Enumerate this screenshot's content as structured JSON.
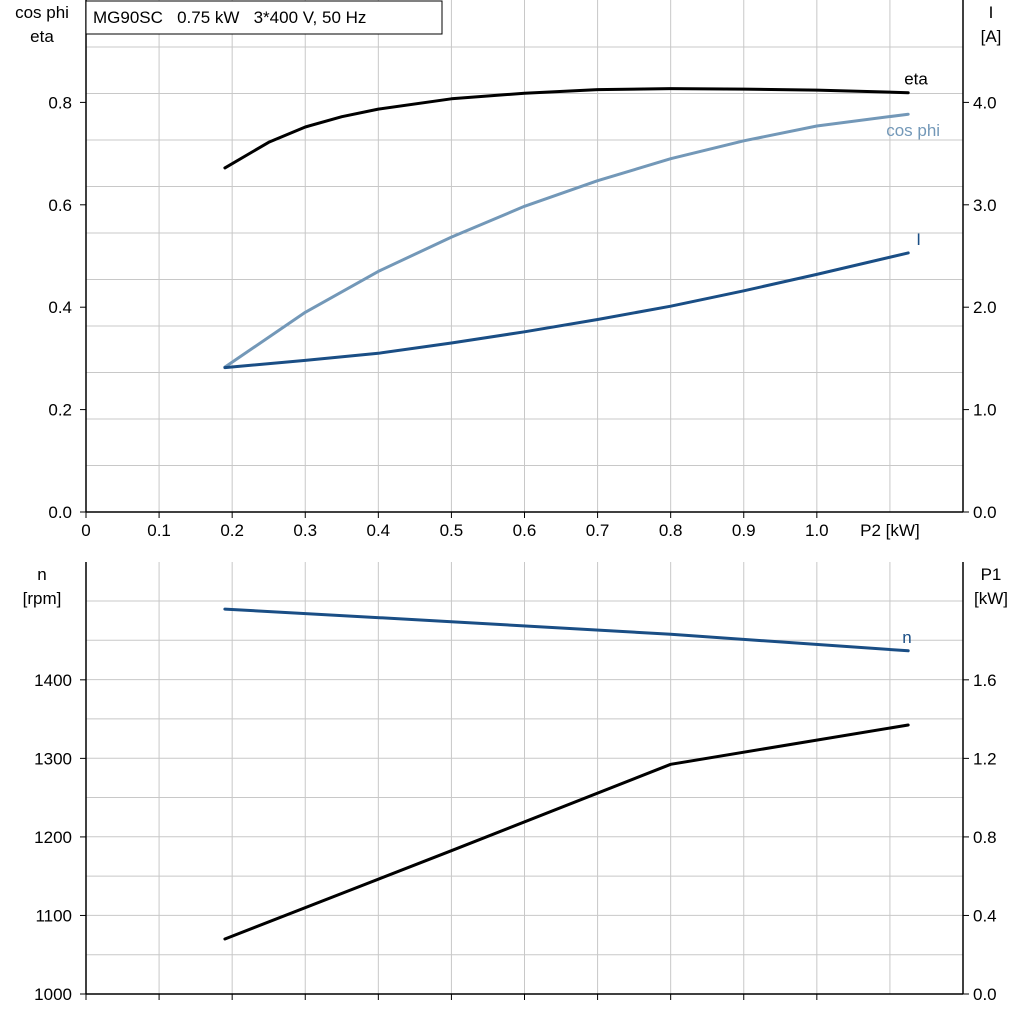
{
  "header": {
    "title": "MG90SC   0.75 kW   3*400 V, 50 Hz"
  },
  "chart_data": [
    {
      "type": "line",
      "x_axis": {
        "label": "P2 [kW]",
        "range": [
          0,
          1.2
        ],
        "ticks": [
          0,
          0.1,
          0.2,
          0.3,
          0.4,
          0.5,
          0.6,
          0.7,
          0.8,
          0.9,
          1.0
        ],
        "tick_labels": [
          "0",
          "0.1",
          "0.2",
          "0.3",
          "0.4",
          "0.5",
          "0.6",
          "0.7",
          "0.8",
          "0.9",
          "1.0"
        ]
      },
      "y_left": {
        "label": [
          "cos phi",
          "eta"
        ],
        "range": [
          0,
          1.0
        ],
        "ticks": [
          0,
          0.2,
          0.4,
          0.6,
          0.8
        ],
        "tick_labels": [
          "0.0",
          "0.2",
          "0.4",
          "0.6",
          "0.8"
        ]
      },
      "y_right": {
        "label": [
          "I",
          "[A]"
        ],
        "range": [
          0,
          5.0
        ],
        "ticks": [
          0,
          1,
          2,
          3,
          4
        ],
        "tick_labels": [
          "0.0",
          "1.0",
          "2.0",
          "3.0",
          "4.0"
        ]
      },
      "grid": true,
      "series": [
        {
          "name": "eta",
          "axis": "left",
          "color": "#000000",
          "x": [
            0.19,
            0.25,
            0.3,
            0.35,
            0.4,
            0.5,
            0.6,
            0.7,
            0.8,
            0.9,
            1.0,
            1.125
          ],
          "y": [
            0.672,
            0.722,
            0.752,
            0.772,
            0.787,
            0.807,
            0.818,
            0.825,
            0.827,
            0.826,
            0.824,
            0.819
          ]
        },
        {
          "name": "cos phi",
          "axis": "left",
          "color": "#7398b8",
          "x": [
            0.19,
            0.3,
            0.4,
            0.5,
            0.6,
            0.7,
            0.8,
            0.9,
            1.0,
            1.125
          ],
          "y": [
            0.283,
            0.39,
            0.47,
            0.537,
            0.597,
            0.647,
            0.69,
            0.725,
            0.754,
            0.777
          ]
        },
        {
          "name": "I",
          "axis": "right",
          "color": "#1a4e85",
          "x": [
            0.19,
            0.3,
            0.4,
            0.5,
            0.6,
            0.7,
            0.8,
            0.9,
            1.0,
            1.125
          ],
          "y": [
            1.41,
            1.48,
            1.55,
            1.65,
            1.76,
            1.88,
            2.01,
            2.16,
            2.32,
            2.53
          ]
        }
      ]
    },
    {
      "type": "line",
      "x_axis": {
        "range": [
          0,
          1.2
        ],
        "ticks": [
          0,
          0.1,
          0.2,
          0.3,
          0.4,
          0.5,
          0.6,
          0.7,
          0.8,
          0.9,
          1.0
        ]
      },
      "y_left": {
        "label": [
          "n",
          "[rpm]"
        ],
        "range": [
          1000,
          1550
        ],
        "ticks": [
          1000,
          1100,
          1200,
          1300,
          1400
        ],
        "tick_labels": [
          "1000",
          "1100",
          "1200",
          "1300",
          "1400"
        ]
      },
      "y_right": {
        "label": [
          "P1",
          "[kW]"
        ],
        "range": [
          0,
          2.2
        ],
        "ticks": [
          0,
          0.4,
          0.8,
          1.2,
          1.6
        ],
        "tick_labels": [
          "0.0",
          "0.4",
          "0.8",
          "1.2",
          "1.6"
        ]
      },
      "grid": true,
      "series": [
        {
          "name": "n",
          "axis": "left",
          "color": "#1a4e85",
          "x": [
            0.19,
            0.5,
            0.8,
            1.125
          ],
          "y": [
            1490,
            1474,
            1458,
            1437
          ]
        },
        {
          "name": "",
          "axis": "right",
          "color": "#000000",
          "x": [
            0.19,
            0.5,
            0.8,
            1.125
          ],
          "y": [
            0.28,
            0.73,
            1.17,
            1.37
          ]
        }
      ]
    }
  ],
  "colors": {
    "grid": "#c8c8c8",
    "axis": "#000000",
    "eta": "#000000",
    "cos_phi": "#7398b8",
    "current": "#1a4e85",
    "speed": "#1a4e85",
    "p1": "#000000"
  }
}
